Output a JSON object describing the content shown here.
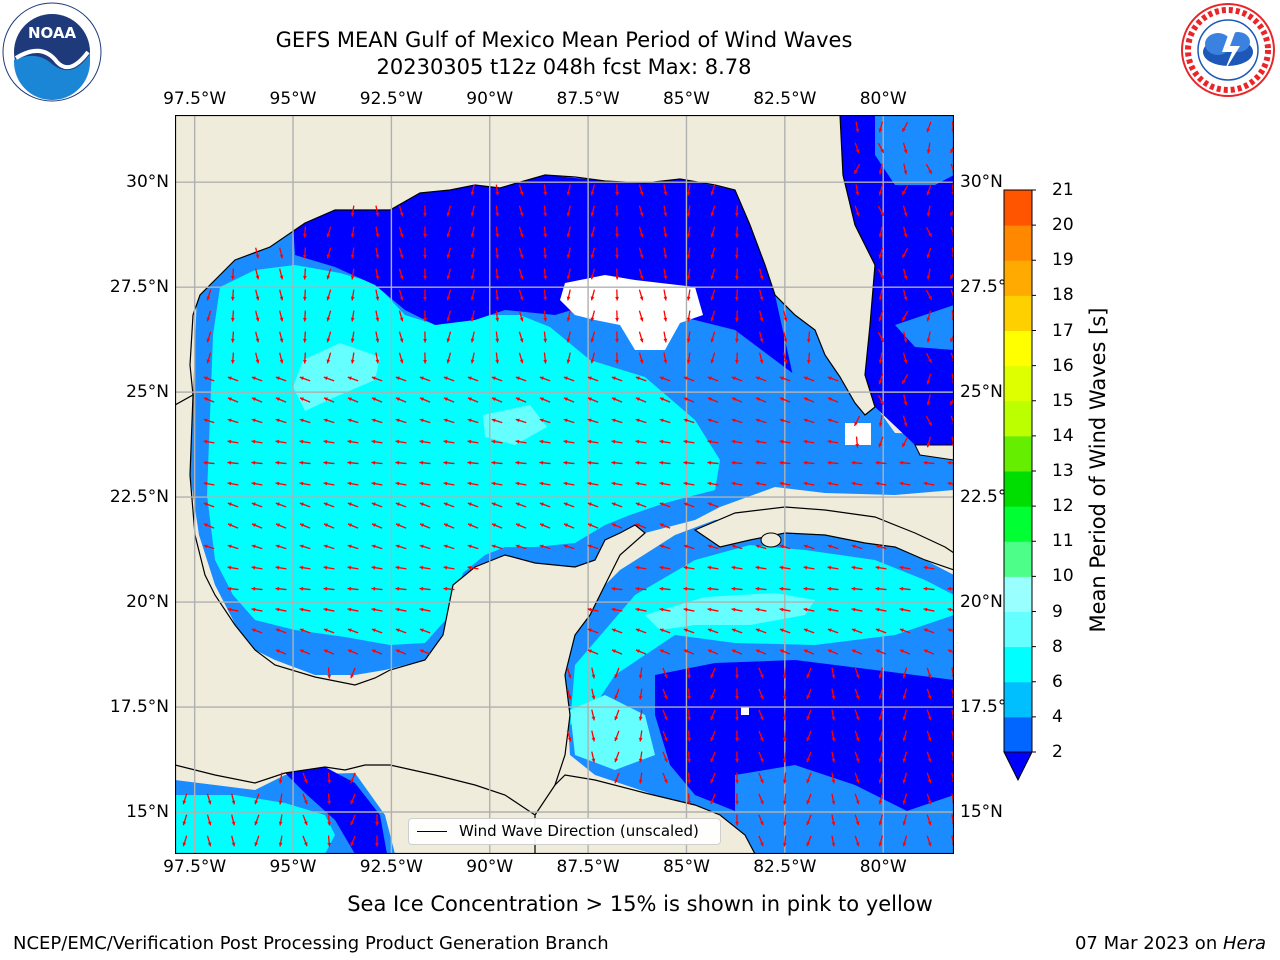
{
  "title_line1": "GEFS MEAN Gulf of Mexico Mean Period of Wind Waves",
  "title_line2": "20230305 t12z 048h fcst   Max: 8.78",
  "logos": {
    "left": {
      "name": "NOAA",
      "ring_text": "NATIONAL OCEANIC AND ATMOSPHERIC ADMINISTRATION · U.S. DEPARTMENT OF COMMERCE",
      "colors": {
        "ring": "#ffffff",
        "sky": "#1f3a7a",
        "sea": "#1c86d6"
      }
    },
    "right": {
      "name": "NATIONAL WEATHER SERVICE",
      "colors": {
        "ring": "#e8262a",
        "cloud": "#1d58b8"
      }
    }
  },
  "map": {
    "lon_ticks": [
      "97.5°W",
      "95°W",
      "92.5°W",
      "90°W",
      "87.5°W",
      "85°W",
      "82.5°W",
      "80°W"
    ],
    "lat_ticks_left": [
      "30°N",
      "27.5°N",
      "25°N",
      "22.5°N",
      "20°N",
      "17.5°N",
      "15°N"
    ],
    "lat_ticks_right": [
      "30°N",
      "27.5°",
      "25°N",
      "22.5°",
      "20°N",
      "17.5°",
      "15°N"
    ],
    "lon_values": [
      -97.5,
      -95,
      -92.5,
      -90,
      -87.5,
      -85,
      -82.5,
      -80
    ],
    "lat_values": [
      30,
      27.5,
      25,
      22.5,
      20,
      17.5,
      15
    ],
    "extent": {
      "lon_min": -98,
      "lon_max": -78.2,
      "lat_min": 14,
      "lat_max": 31.6
    },
    "land_color": "#efecdc",
    "coast_color": "#000000",
    "grid_color": "#b0b0b0",
    "vector_color": "#ff0000"
  },
  "legend": {
    "label": "Wind Wave Direction (unscaled)"
  },
  "colorbar": {
    "label": "Mean Period of Wind Waves [s]",
    "ticks": [
      "2",
      "4",
      "6",
      "8",
      "9",
      "10",
      "11",
      "12",
      "13",
      "14",
      "15",
      "16",
      "17",
      "18",
      "19",
      "20",
      "21"
    ],
    "colors": [
      "#0066ff",
      "#00bfff",
      "#00ffff",
      "#66ffff",
      "#99ffff",
      "#4dff88",
      "#00ff33",
      "#00dd00",
      "#66ee00",
      "#bbff00",
      "#ddff00",
      "#ffff00",
      "#ffd000",
      "#ffaa00",
      "#ff8800",
      "#ff5500",
      "#ff2200",
      "#ff0000"
    ],
    "extend_min_color": "#0000ff"
  },
  "field_colors": {
    "below_2": "#0000ff",
    "2_4": "#1a8cff",
    "4_6": "#00ffff",
    "6_8": "#66ffff"
  },
  "subtitle": "Sea Ice Concentration > 15% is shown in pink to yellow",
  "footer_left": "NCEP/EMC/Verification Post Processing Product Generation Branch",
  "footer_right_date": "07 Mar 2023 on ",
  "footer_right_host": "Hera"
}
